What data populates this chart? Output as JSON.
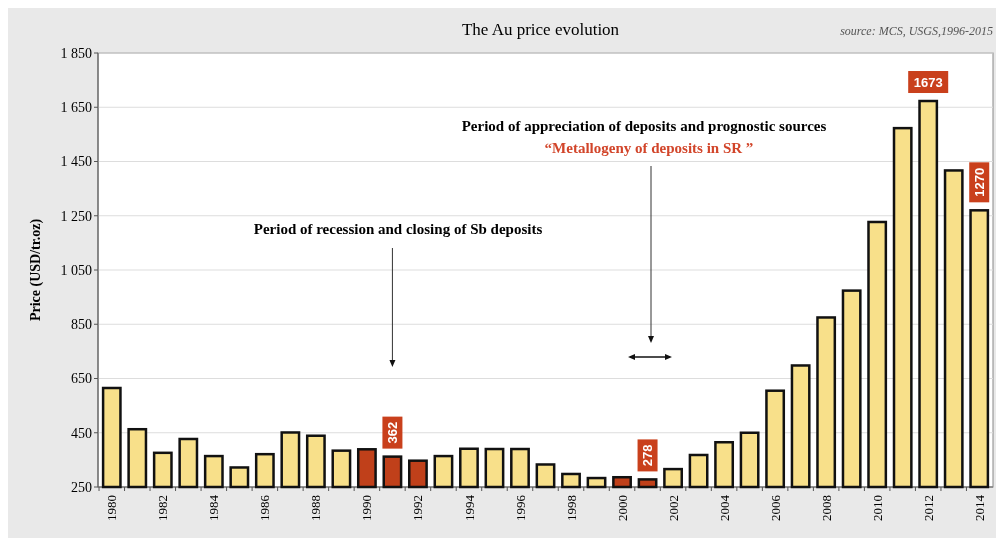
{
  "chart_data": {
    "type": "bar",
    "title": "The Au price evolution",
    "ylabel": "Price (USD/tr.oz)",
    "categories": [
      "1980",
      null,
      "1982",
      null,
      "1984",
      null,
      "1986",
      null,
      "1988",
      null,
      "1990",
      null,
      "1992",
      null,
      "1994",
      null,
      "1996",
      null,
      "1998",
      null,
      "2000",
      null,
      "2002",
      null,
      "2004",
      null,
      "2006",
      null,
      "2008",
      null,
      "2010",
      null,
      "2012",
      null,
      "2014"
    ],
    "values": [
      615,
      463,
      376,
      427,
      364,
      322,
      371,
      451,
      439,
      384,
      389,
      362,
      347,
      364,
      391,
      390,
      390,
      333,
      298,
      283,
      286,
      278,
      316,
      368,
      415,
      450,
      605,
      698,
      875,
      974,
      1227,
      1573,
      1673,
      1417,
      1270
    ],
    "colors": [
      "#f8e08a",
      "#f8e08a",
      "#f8e08a",
      "#f8e08a",
      "#f8e08a",
      "#f8e08a",
      "#f8e08a",
      "#f8e08a",
      "#f8e08a",
      "#f8e08a",
      "#c0401a",
      "#c0401a",
      "#c0401a",
      "#f8e08a",
      "#f8e08a",
      "#f8e08a",
      "#f8e08a",
      "#f8e08a",
      "#f8e08a",
      "#f8e08a",
      "#c0401a",
      "#c0401a",
      "#f8e08a",
      "#f8e08a",
      "#f8e08a",
      "#f8e08a",
      "#f8e08a",
      "#f8e08a",
      "#f8e08a",
      "#f8e08a",
      "#f8e08a",
      "#f8e08a",
      "#f8e08a",
      "#f8e08a",
      "#f8e08a"
    ],
    "value_labels": [
      null,
      null,
      null,
      null,
      null,
      null,
      null,
      null,
      null,
      null,
      null,
      "362",
      null,
      null,
      null,
      null,
      null,
      null,
      null,
      null,
      null,
      "278",
      null,
      null,
      null,
      null,
      null,
      null,
      null,
      null,
      null,
      null,
      "1673",
      null,
      "1270"
    ],
    "ylim": [
      250,
      1850
    ],
    "yticks": [
      {
        "value": 250,
        "label": "250"
      },
      {
        "value": 450,
        "label": "450"
      },
      {
        "value": 650,
        "label": "650"
      },
      {
        "value": 850,
        "label": "850"
      },
      {
        "value": 1050,
        "label": "1 050"
      },
      {
        "value": 1250,
        "label": "1 250"
      },
      {
        "value": 1450,
        "label": "1 450"
      },
      {
        "value": 1650,
        "label": "1 650"
      },
      {
        "value": 1850,
        "label": "1 850"
      }
    ],
    "grid": "y",
    "annotations": [
      "Period of recession and closing of Sb deposits",
      "Period of appreciation of deposits and prognostic sources",
      "“Metallogeny of deposits in SR ”",
      "source: MCS, USGS,1996-2015"
    ]
  }
}
